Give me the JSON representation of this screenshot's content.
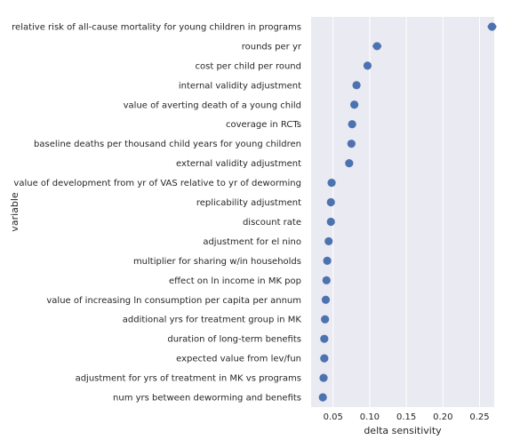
{
  "chart_data": {
    "type": "scatter",
    "xlabel": "delta sensitivity",
    "ylabel": "variable",
    "xlim": [
      0.02,
      0.27
    ],
    "xticks": [
      0.05,
      0.1,
      0.15,
      0.2,
      0.25
    ],
    "xtick_labels": [
      "0.05",
      "0.10",
      "0.15",
      "0.20",
      "0.25"
    ],
    "grid": true,
    "background": "#eaeaf2",
    "point_color": "#4c72b0",
    "categories": [
      "relative risk of all-cause mortality for young children in programs",
      "rounds per yr",
      "cost per child per round",
      "internal validity adjustment",
      "value of averting death of a young child",
      "coverage in RCTs",
      "baseline deaths per thousand child years for young children",
      "external validity adjustment",
      "value of development from yr of VAS relative to yr of deworming",
      "replicability adjustment",
      "discount rate",
      "adjustment for el nino",
      "multiplier for sharing w/in households",
      "effect on ln income in MK pop",
      "value of increasing ln consumption per capita per annum",
      "additional yrs for treatment group in MK",
      "duration of long-term benefits",
      "expected value from lev/fun",
      "adjustment for yrs of treatment in MK vs programs",
      "num yrs between deworming and benefits"
    ],
    "values": [
      0.267,
      0.11,
      0.097,
      0.082,
      0.079,
      0.076,
      0.075,
      0.072,
      0.048,
      0.047,
      0.047,
      0.044,
      0.042,
      0.041,
      0.04,
      0.039,
      0.038,
      0.038,
      0.037,
      0.036
    ],
    "error_half_width": [
      0.006,
      0.006,
      0.002,
      0.002,
      0.002,
      0.002,
      0.002,
      0.002,
      0.002,
      0.002,
      0.002,
      0.002,
      0.002,
      0.002,
      0.002,
      0.002,
      0.002,
      0.002,
      0.002,
      0.002
    ]
  }
}
